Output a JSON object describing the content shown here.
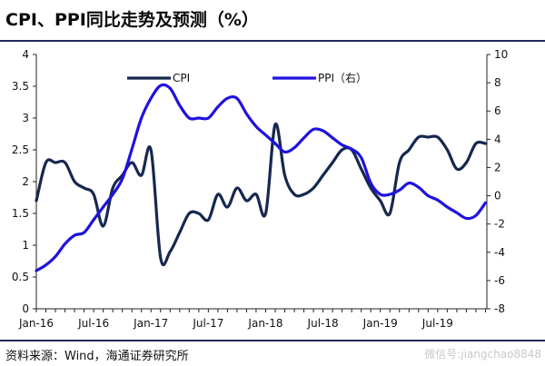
{
  "title": "CPI、PPI同比走势及预测（%）",
  "source": "资料来源：Wind，海通证券研究所",
  "watermark": "微信号:jiangchao8848",
  "colors": {
    "cpi": "#16284f",
    "ppi": "#1f12de",
    "axis": "#222222"
  },
  "chart_data": {
    "type": "line",
    "x_tick_labels": [
      "Jan-16",
      "Jul-16",
      "Jan-17",
      "Jul-17",
      "Jan-18",
      "Jul-18",
      "Jan-19",
      "Jul-19"
    ],
    "x": [
      "2016-01",
      "2016-02",
      "2016-03",
      "2016-04",
      "2016-05",
      "2016-06",
      "2016-07",
      "2016-08",
      "2016-09",
      "2016-10",
      "2016-11",
      "2016-12",
      "2017-01",
      "2017-02",
      "2017-03",
      "2017-04",
      "2017-05",
      "2017-06",
      "2017-07",
      "2017-08",
      "2017-09",
      "2017-10",
      "2017-11",
      "2017-12",
      "2018-01",
      "2018-02",
      "2018-03",
      "2018-04",
      "2018-05",
      "2018-06",
      "2018-07",
      "2018-08",
      "2018-09",
      "2018-10",
      "2018-11",
      "2018-12",
      "2019-01",
      "2019-02",
      "2019-03",
      "2019-04",
      "2019-05",
      "2019-06",
      "2019-07",
      "2019-08",
      "2019-09",
      "2019-10",
      "2019-11",
      "2019-12"
    ],
    "left_axis": {
      "min": 0,
      "max": 4,
      "ticks": [
        "0",
        "0.5",
        "1",
        "1.5",
        "2",
        "2.5",
        "3",
        "3.5",
        "4"
      ]
    },
    "right_axis": {
      "min": -8,
      "max": 10,
      "ticks": [
        "-8",
        "-6",
        "-4",
        "-2",
        "0",
        "2",
        "4",
        "6",
        "8",
        "10"
      ]
    },
    "legend_placement": "top",
    "series": [
      {
        "name": "CPI",
        "axis": "left",
        "values": [
          1.7,
          2.3,
          2.3,
          2.3,
          2.0,
          1.9,
          1.8,
          1.3,
          1.9,
          2.1,
          2.3,
          2.1,
          2.5,
          0.8,
          0.9,
          1.2,
          1.5,
          1.5,
          1.4,
          1.8,
          1.6,
          1.9,
          1.7,
          1.8,
          1.5,
          2.9,
          2.1,
          1.8,
          1.8,
          1.9,
          2.1,
          2.3,
          2.5,
          2.5,
          2.2,
          1.9,
          1.7,
          1.5,
          2.3,
          2.5,
          2.7,
          2.7,
          2.7,
          2.5,
          2.2,
          2.3,
          2.6,
          2.6
        ]
      },
      {
        "name": "PPI（右）",
        "axis": "right",
        "values": [
          -5.3,
          -4.9,
          -4.3,
          -3.4,
          -2.8,
          -2.6,
          -1.7,
          -0.8,
          0.1,
          1.2,
          3.3,
          5.5,
          6.9,
          7.8,
          7.6,
          6.4,
          5.5,
          5.5,
          5.5,
          6.3,
          6.9,
          6.9,
          5.8,
          4.9,
          4.3,
          3.7,
          3.1,
          3.4,
          4.1,
          4.7,
          4.6,
          4.1,
          3.6,
          3.3,
          2.7,
          0.9,
          0.1,
          0.1,
          0.4,
          0.9,
          0.6,
          0.0,
          -0.3,
          -0.8,
          -1.2,
          -1.6,
          -1.4,
          -0.5
        ]
      }
    ]
  }
}
